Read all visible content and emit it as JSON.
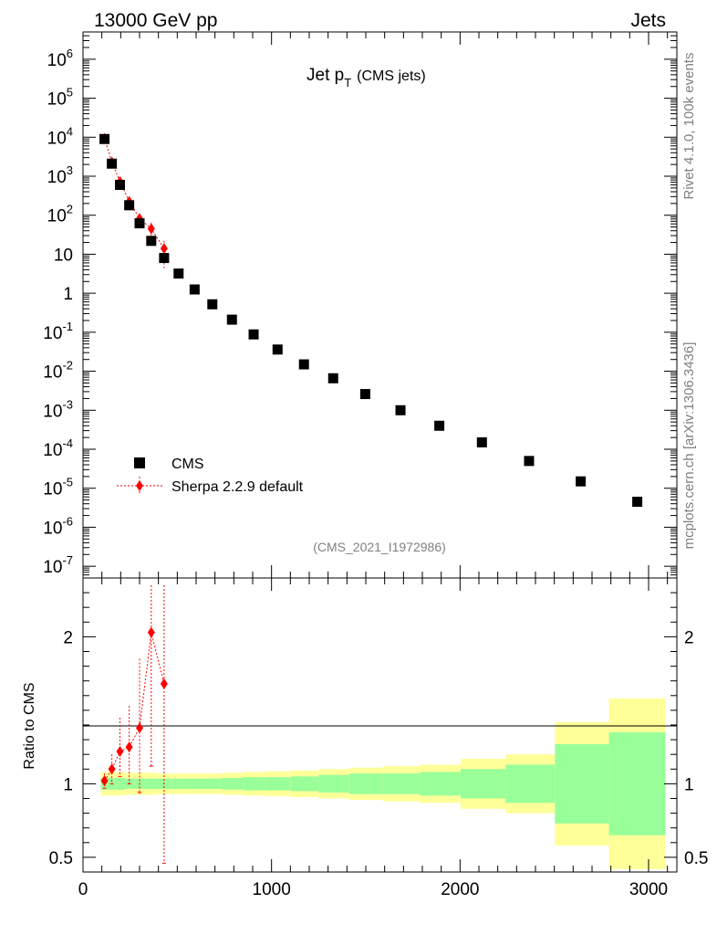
{
  "header": {
    "energy_label": "13000 GeV pp",
    "category_label": "Jets"
  },
  "side_labels": {
    "rivet": "Rivet 4.1.0,  100k events",
    "source": "mcplots.cern.ch [arXiv:1306.3436]"
  },
  "colors": {
    "data": "#000000",
    "mc": "#ff0000",
    "band_inner": "#99ff99",
    "band_outer": "#ffff99",
    "grey_text": "#808080"
  },
  "chart_data": [
    {
      "type": "scatter",
      "panel": "main",
      "title": "Jet p",
      "title_subscript": "T",
      "title_suffix": "(CMS jets)",
      "analysis_id": "(CMS_2021_I1972986)",
      "yscale": "log",
      "xlim": [
        0,
        3150
      ],
      "ylim": [
        5e-08,
        5000000.0
      ],
      "y_tick_labels": [
        "10^-7",
        "10^-6",
        "10^-5",
        "10^-4",
        "10^-3",
        "10^-2",
        "10^-1",
        "1",
        "10",
        "10^2",
        "10^3",
        "10^4",
        "10^5",
        "10^6"
      ],
      "legend_position": "bottom-left",
      "series": [
        {
          "name": "CMS",
          "marker": "square",
          "x": [
            114,
            153,
            196,
            245,
            300,
            362,
            430,
            507,
            592,
            686,
            790,
            905,
            1032,
            1172,
            1327,
            1497,
            1684,
            1890,
            2116,
            2366,
            2640,
            2940
          ],
          "y": [
            9000,
            2100,
            600,
            180,
            62,
            22,
            8,
            3.2,
            1.25,
            0.52,
            0.21,
            0.088,
            0.036,
            0.015,
            0.0066,
            0.0026,
            0.001,
            0.0004,
            0.00015,
            5e-05,
            1.5e-05,
            4.5e-06
          ],
          "ratio_band_outer": [
            0.08,
            0.08,
            0.08,
            0.075,
            0.075,
            0.075,
            0.07,
            0.07,
            0.07,
            0.07,
            0.075,
            0.08,
            0.085,
            0.09,
            0.1,
            0.11,
            0.12,
            0.13,
            0.17,
            0.2,
            0.42,
            0.58
          ],
          "ratio_band_inner": [
            0.04,
            0.04,
            0.04,
            0.035,
            0.035,
            0.035,
            0.035,
            0.035,
            0.035,
            0.035,
            0.04,
            0.045,
            0.045,
            0.05,
            0.06,
            0.07,
            0.07,
            0.08,
            0.1,
            0.13,
            0.27,
            0.35
          ]
        },
        {
          "name": "Sherpa 2.2.9 default",
          "marker": "diamond",
          "line": "dotted",
          "x": [
            114,
            153,
            196,
            245,
            300,
            362,
            430
          ],
          "y": [
            9300,
            2300,
            730,
            225,
            82,
            45,
            14
          ],
          "y_err_lo": [
            1500,
            400,
            150,
            70,
            25,
            20,
            10
          ],
          "y_err_hi": [
            1500,
            400,
            150,
            70,
            25,
            20,
            8
          ]
        }
      ]
    },
    {
      "type": "scatter",
      "panel": "ratio",
      "ylabel": "Ratio to CMS",
      "xlabel": "",
      "xlim": [
        0,
        3150
      ],
      "ylim": [
        0.4,
        2.4
      ],
      "y_tick_labels": [
        "0.5",
        "1",
        "2"
      ],
      "x_tick_labels": [
        "0",
        "1000",
        "2000",
        "3000"
      ],
      "series": [
        {
          "name": "Sherpa 2.2.9 default",
          "x": [
            114,
            153,
            196,
            245,
            300,
            362,
            430
          ],
          "y": [
            1.02,
            1.1,
            1.22,
            1.25,
            1.38,
            2.03,
            1.68
          ],
          "y_lo": [
            0.97,
            1.0,
            1.05,
            1.0,
            0.94,
            1.12,
            0.46
          ],
          "y_hi": [
            1.07,
            1.2,
            1.45,
            1.53,
            1.85,
            2.35,
            2.35
          ]
        }
      ]
    }
  ]
}
